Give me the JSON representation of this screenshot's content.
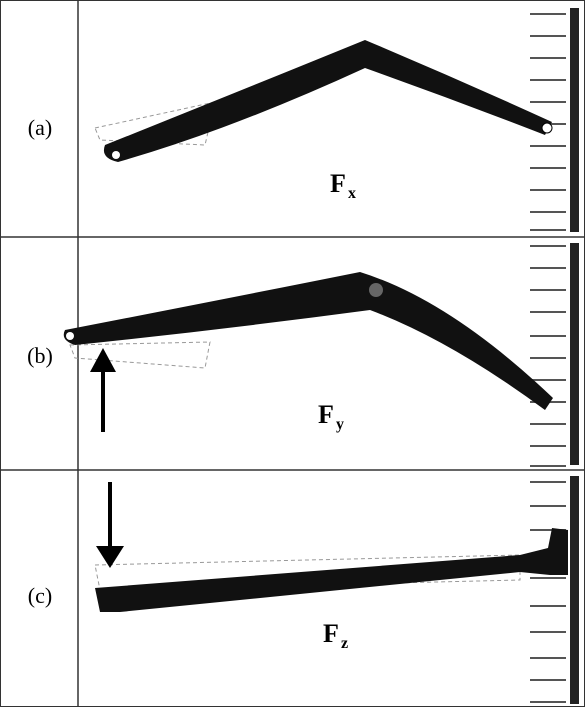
{
  "panels": [
    {
      "label": "(a)",
      "force": "F",
      "subscript": "x"
    },
    {
      "label": "(b)",
      "force": "F",
      "subscript": "y"
    },
    {
      "label": "(c)",
      "force": "F",
      "subscript": "z"
    }
  ]
}
